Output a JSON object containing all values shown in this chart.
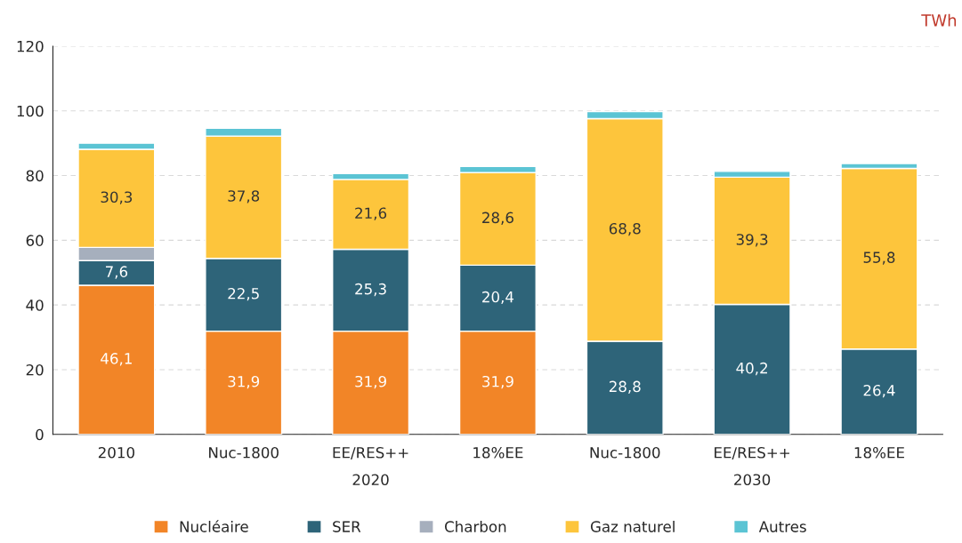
{
  "chart_data": {
    "type": "bar",
    "stacked": true,
    "ylabel": "TWh",
    "categories": [
      "2010",
      "Nuc-1800",
      "EE/RES++",
      "18%EE",
      "Nuc-1800",
      "EE/RES++",
      "18%EE"
    ],
    "series": [
      {
        "name": "Nucléaire",
        "color": "#f28527",
        "values": [
          46.1,
          31.9,
          31.9,
          31.9,
          null,
          null,
          null
        ],
        "value_labels": [
          "46,1",
          "31,9",
          "31,9",
          "31,9",
          null,
          null,
          null
        ]
      },
      {
        "name": "SER",
        "color": "#2e6479",
        "values": [
          7.6,
          22.5,
          25.3,
          20.4,
          28.8,
          40.2,
          26.4
        ],
        "value_labels": [
          "7,6",
          "22,5",
          "25,3",
          "20,4",
          "28,8",
          "40,2",
          "26,4"
        ]
      },
      {
        "name": "Charbon",
        "color": "#a6afbd",
        "values": [
          4.1,
          null,
          null,
          null,
          null,
          null,
          null
        ]
      },
      {
        "name": "Gaz naturel",
        "color": "#fdc53c",
        "values": [
          30.3,
          37.8,
          21.6,
          28.6,
          68.8,
          39.3,
          55.8
        ],
        "value_labels": [
          "30,3",
          "37,8",
          "21,6",
          "28,6",
          "68,8",
          "39,3",
          "55,8"
        ]
      },
      {
        "name": "Autres",
        "color": "#5bc4d4",
        "values": [
          1.9,
          2.4,
          1.8,
          1.9,
          2.2,
          1.8,
          1.5
        ]
      }
    ],
    "annotations": [
      "2020",
      "2030"
    ],
    "ylim": [
      0,
      120
    ],
    "yticks": [
      0,
      20,
      40,
      60,
      80,
      100,
      120
    ],
    "grid": "y",
    "legend": "bottom"
  }
}
